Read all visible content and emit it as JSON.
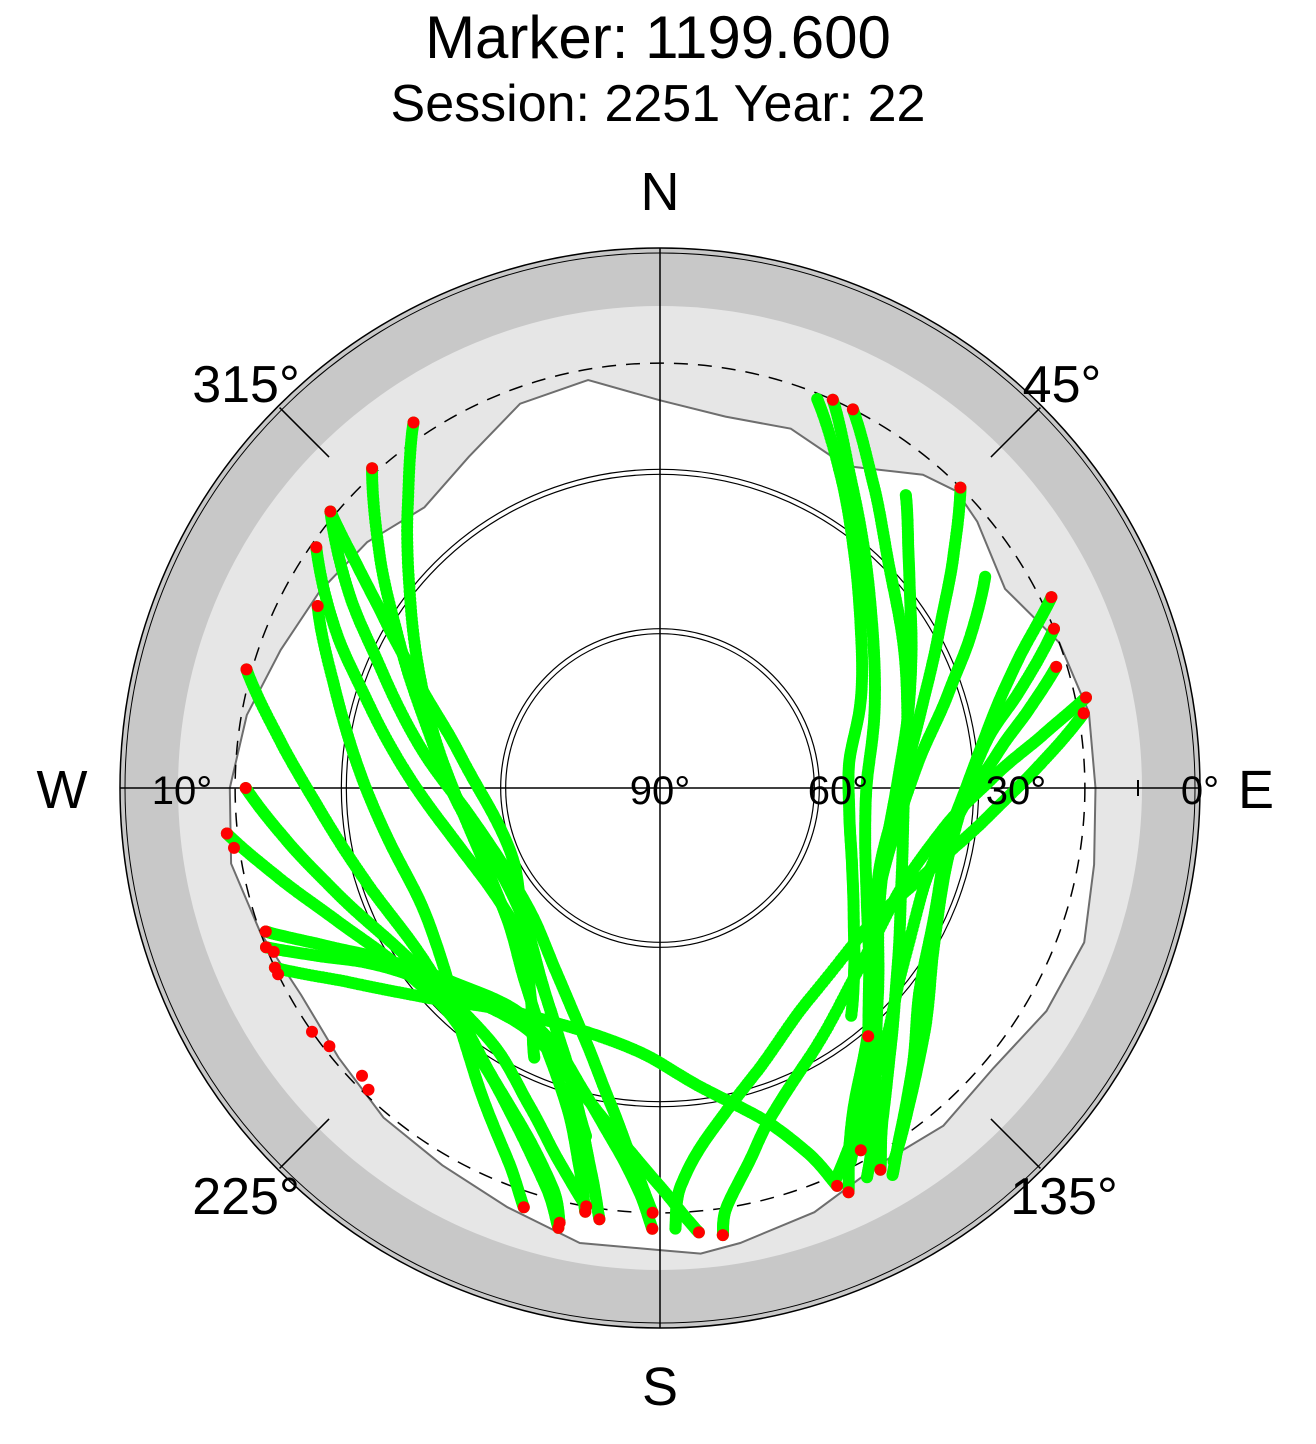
{
  "header": {
    "title": "Marker: 1199.600",
    "subtitle": "Session: 2251 Year: 22"
  },
  "chart_data": {
    "type": "scatter",
    "projection": "polar-skyplot",
    "title": "Marker: 1199.600",
    "subtitle": "Session: 2251 Year: 22",
    "direction_labels": {
      "north": "N",
      "east": "E",
      "south": "S",
      "west": "W"
    },
    "azimuth_tick_labels": [
      {
        "azimuth": 45,
        "text": "45°"
      },
      {
        "azimuth": 135,
        "text": "135°"
      },
      {
        "azimuth": 225,
        "text": "225°"
      },
      {
        "azimuth": 315,
        "text": "315°"
      }
    ],
    "elevation_tick_labels": [
      {
        "elevation": 90,
        "text": "90°"
      },
      {
        "elevation": 60,
        "text": "60°"
      },
      {
        "elevation": 30,
        "text": "30°"
      },
      {
        "elevation": 0,
        "text": "0°"
      },
      {
        "elevation": 10,
        "text": "10°"
      }
    ],
    "elevation_circles": [
      0,
      30,
      60
    ],
    "cutoff_elevation": 10,
    "colors": {
      "track": "#00ff00",
      "low_points": "#ff0000",
      "horizon_band": "#c8c8c8",
      "mask_area": "#e6e6e6",
      "axes": "#000000"
    },
    "horizon_mask": [
      [
        0,
        17
      ],
      [
        10,
        19
      ],
      [
        20,
        18
      ],
      [
        30,
        20
      ],
      [
        40,
        13
      ],
      [
        45,
        11
      ],
      [
        50,
        12
      ],
      [
        60,
        15
      ],
      [
        70,
        10
      ],
      [
        80,
        8
      ],
      [
        90,
        8
      ],
      [
        100,
        7
      ],
      [
        110,
        5
      ],
      [
        120,
        6
      ],
      [
        130,
        8
      ],
      [
        140,
        7
      ],
      [
        150,
        8
      ],
      [
        160,
        5
      ],
      [
        170,
        3
      ],
      [
        175,
        2
      ],
      [
        180,
        3
      ],
      [
        190,
        3
      ],
      [
        200,
        6
      ],
      [
        210,
        8
      ],
      [
        220,
        9
      ],
      [
        230,
        11
      ],
      [
        240,
        12
      ],
      [
        250,
        10
      ],
      [
        260,
        8
      ],
      [
        270,
        9
      ],
      [
        280,
        11
      ],
      [
        290,
        14
      ],
      [
        300,
        16
      ],
      [
        310,
        18
      ],
      [
        320,
        21
      ],
      [
        330,
        18
      ],
      [
        340,
        13
      ],
      [
        350,
        12
      ],
      [
        360,
        17
      ]
    ],
    "series": [
      {
        "points": [
          [
            22,
            11
          ],
          [
            30,
            22
          ],
          [
            40,
            33
          ],
          [
            52,
            42
          ],
          [
            67,
            49
          ],
          [
            82,
            54
          ],
          [
            98,
            54
          ],
          [
            112,
            51
          ],
          [
            124,
            46
          ],
          [
            133,
            40
          ],
          [
            140,
            34
          ]
        ]
      },
      {
        "points": [
          [
            24,
            10
          ],
          [
            32,
            22
          ],
          [
            43,
            33
          ],
          [
            55,
            41
          ],
          [
            70,
            47
          ],
          [
            88,
            51
          ],
          [
            105,
            50
          ],
          [
            120,
            45
          ],
          [
            132,
            37
          ],
          [
            140,
            29
          ],
          [
            146,
            20
          ],
          [
            151,
            12
          ]
        ]
      },
      {
        "points": [
          [
            27,
            10
          ],
          [
            35,
            20
          ],
          [
            46,
            30
          ],
          [
            60,
            37
          ],
          [
            76,
            42
          ],
          [
            94,
            44
          ],
          [
            112,
            41
          ],
          [
            127,
            34
          ],
          [
            138,
            25
          ],
          [
            146,
            15
          ],
          [
            150,
            7
          ]
        ]
      },
      {
        "points": [
          [
            40,
            18
          ],
          [
            47,
            26
          ],
          [
            56,
            33
          ],
          [
            70,
            40
          ],
          [
            87,
            45
          ],
          [
            105,
            46
          ],
          [
            121,
            42
          ],
          [
            134,
            33
          ],
          [
            142,
            24
          ],
          [
            148,
            14
          ],
          [
            152,
            7
          ]
        ]
      },
      {
        "points": [
          [
            45,
            10
          ],
          [
            52,
            20
          ],
          [
            61,
            30
          ],
          [
            74,
            39
          ],
          [
            91,
            45
          ],
          [
            110,
            46
          ],
          [
            127,
            40
          ],
          [
            138,
            31
          ],
          [
            147,
            22
          ],
          [
            152,
            14
          ],
          [
            155,
            6
          ]
        ]
      },
      {
        "points": [
          [
            57,
            17
          ],
          [
            64,
            25
          ],
          [
            72,
            33
          ],
          [
            84,
            41
          ],
          [
            100,
            45
          ],
          [
            117,
            44
          ],
          [
            131,
            37
          ],
          [
            141,
            28
          ],
          [
            148,
            19
          ],
          [
            153,
            11
          ]
        ]
      },
      {
        "points": [
          [
            64,
            8
          ],
          [
            70,
            18
          ],
          [
            78,
            26
          ],
          [
            89,
            32
          ],
          [
            101,
            35
          ],
          [
            115,
            33
          ],
          [
            128,
            28
          ],
          [
            138,
            19
          ],
          [
            145,
            11
          ],
          [
            149,
            5
          ]
        ]
      },
      {
        "points": [
          [
            68,
            10
          ],
          [
            75,
            20
          ],
          [
            82,
            28
          ],
          [
            93,
            33
          ],
          [
            107,
            34
          ],
          [
            121,
            30
          ],
          [
            133,
            22
          ],
          [
            141,
            15
          ],
          [
            148,
            7
          ]
        ]
      },
      {
        "points": [
          [
            73,
            12
          ],
          [
            78,
            19
          ],
          [
            84,
            26
          ],
          [
            94,
            33
          ],
          [
            109,
            37
          ],
          [
            127,
            33
          ],
          [
            141,
            24
          ],
          [
            150,
            16
          ],
          [
            156,
            9
          ]
        ]
      },
      {
        "points": [
          [
            78,
            8
          ],
          [
            82,
            17
          ],
          [
            88,
            27
          ],
          [
            98,
            36
          ],
          [
            114,
            41
          ],
          [
            134,
            39
          ],
          [
            151,
            32
          ],
          [
            161,
            25
          ],
          [
            167,
            17
          ],
          [
            171,
            10
          ],
          [
            172,
            5
          ]
        ]
      },
      {
        "points": [
          [
            80,
            9
          ],
          [
            87,
            19
          ],
          [
            95,
            28
          ],
          [
            107,
            37
          ],
          [
            124,
            43
          ],
          [
            146,
            41
          ],
          [
            162,
            33
          ],
          [
            172,
            24
          ],
          [
            177,
            15
          ],
          [
            178,
            7
          ]
        ]
      },
      {
        "points": [
          [
            298,
            17
          ],
          [
            287,
            26
          ],
          [
            274,
            33
          ],
          [
            259,
            38
          ],
          [
            244,
            40
          ],
          [
            230,
            37
          ],
          [
            218,
            30
          ],
          [
            209,
            22
          ],
          [
            202,
            14
          ],
          [
            198,
            7
          ]
        ]
      },
      {
        "points": [
          [
            286,
            9
          ],
          [
            277,
            18
          ],
          [
            266,
            26
          ],
          [
            252,
            32
          ],
          [
            237,
            35
          ],
          [
            222,
            33
          ],
          [
            210,
            27
          ],
          [
            201,
            20
          ],
          [
            195,
            12
          ],
          [
            193,
            6
          ]
        ]
      },
      {
        "points": [
          [
            270,
            12
          ],
          [
            262,
            19
          ],
          [
            252,
            26
          ],
          [
            239,
            32
          ],
          [
            225,
            34
          ],
          [
            212,
            32
          ],
          [
            202,
            25
          ],
          [
            195,
            17
          ],
          [
            190,
            10
          ]
        ]
      },
      {
        "points": [
          [
            264,
            8
          ],
          [
            257,
            16
          ],
          [
            248,
            24
          ],
          [
            237,
            30
          ],
          [
            224,
            32
          ],
          [
            212,
            28
          ],
          [
            203,
            21
          ],
          [
            196,
            12
          ],
          [
            193,
            5
          ]
        ]
      },
      {
        "points": [
          [
            250,
            11
          ],
          [
            245,
            20
          ],
          [
            238,
            29
          ],
          [
            228,
            36
          ],
          [
            215,
            40
          ],
          [
            203,
            38
          ],
          [
            194,
            31
          ],
          [
            187,
            22
          ],
          [
            183,
            14
          ],
          [
            181,
            7
          ]
        ]
      },
      {
        "points": [
          [
            248,
            10
          ],
          [
            244,
            18
          ],
          [
            239,
            26
          ],
          [
            232,
            32
          ],
          [
            221,
            37
          ],
          [
            208,
            38
          ],
          [
            196,
            32
          ],
          [
            187,
            24
          ],
          [
            180,
            15
          ],
          [
            175,
            6
          ]
        ]
      },
      {
        "points": [
          [
            245,
            10
          ],
          [
            238,
            21
          ],
          [
            228,
            31
          ],
          [
            215,
            39
          ],
          [
            199,
            42
          ],
          [
            184,
            40
          ],
          [
            172,
            33
          ],
          [
            163,
            25
          ],
          [
            158,
            16
          ],
          [
            156,
            8
          ]
        ]
      },
      {
        "points": [
          [
            326,
            7
          ],
          [
            318,
            19
          ],
          [
            306,
            32
          ],
          [
            290,
            43
          ],
          [
            270,
            51
          ],
          [
            249,
            54
          ],
          [
            229,
            52
          ],
          [
            214,
            45
          ],
          [
            203,
            36
          ],
          [
            196,
            27
          ],
          [
            192,
            17
          ],
          [
            190,
            9
          ]
        ]
      },
      {
        "points": [
          [
            318,
            9
          ],
          [
            310,
            21
          ],
          [
            299,
            34
          ],
          [
            284,
            45
          ],
          [
            265,
            52
          ],
          [
            244,
            56
          ],
          [
            225,
            54
          ],
          [
            211,
            47
          ],
          [
            200,
            37
          ],
          [
            194,
            27
          ],
          [
            190,
            16
          ],
          [
            188,
            8
          ]
        ]
      },
      {
        "points": [
          [
            310,
            9
          ],
          [
            302,
            21
          ],
          [
            293,
            33
          ],
          [
            280,
            44
          ],
          [
            264,
            53
          ],
          [
            245,
            57
          ],
          [
            225,
            56
          ],
          [
            209,
            50
          ],
          [
            197,
            41
          ],
          [
            189,
            30
          ],
          [
            184,
            19
          ],
          [
            181,
            10
          ]
        ]
      },
      {
        "points": [
          [
            305,
            11
          ],
          [
            296,
            22
          ],
          [
            286,
            33
          ],
          [
            272,
            43
          ],
          [
            256,
            50
          ],
          [
            238,
            53
          ],
          [
            220,
            51
          ],
          [
            207,
            44
          ],
          [
            198,
            34
          ],
          [
            192,
            23
          ]
        ]
      },
      {
        "points": [
          [
            310,
            9
          ],
          [
            306,
            20
          ],
          [
            301,
            30
          ],
          [
            293,
            41
          ],
          [
            281,
            51
          ],
          [
            262,
            58
          ],
          [
            242,
            59
          ],
          [
            224,
            53
          ],
          [
            212,
            44
          ],
          [
            205,
            34
          ]
        ]
      }
    ],
    "low_elevation_points": [
      [
        24,
        10
      ],
      [
        27,
        10
      ],
      [
        45,
        10
      ],
      [
        64,
        8
      ],
      [
        68,
        10
      ],
      [
        73,
        12
      ],
      [
        78,
        8
      ],
      [
        80,
        9
      ],
      [
        80,
        9
      ],
      [
        140,
        29
      ],
      [
        151,
        12
      ],
      [
        150,
        7
      ],
      [
        155,
        6
      ],
      [
        172,
        5
      ],
      [
        198,
        7
      ],
      [
        193,
        6
      ],
      [
        190,
        10
      ],
      [
        193,
        5
      ],
      [
        181,
        7
      ],
      [
        175,
        6
      ],
      [
        156,
        8
      ],
      [
        190,
        9
      ],
      [
        188,
        8
      ],
      [
        181,
        10
      ],
      [
        326,
        7
      ],
      [
        318,
        9
      ],
      [
        310,
        9
      ],
      [
        305,
        11
      ],
      [
        298,
        17
      ],
      [
        286,
        9
      ],
      [
        270,
        12
      ],
      [
        264,
        8
      ],
      [
        250,
        11
      ],
      [
        248,
        10
      ],
      [
        245,
        10
      ],
      [
        264,
        8
      ],
      [
        262,
        9
      ],
      [
        250,
        11
      ],
      [
        247,
        11
      ],
      [
        244,
        10
      ],
      [
        235,
        10
      ],
      [
        232,
        11
      ],
      [
        226,
        12
      ],
      [
        224,
        11
      ]
    ]
  }
}
